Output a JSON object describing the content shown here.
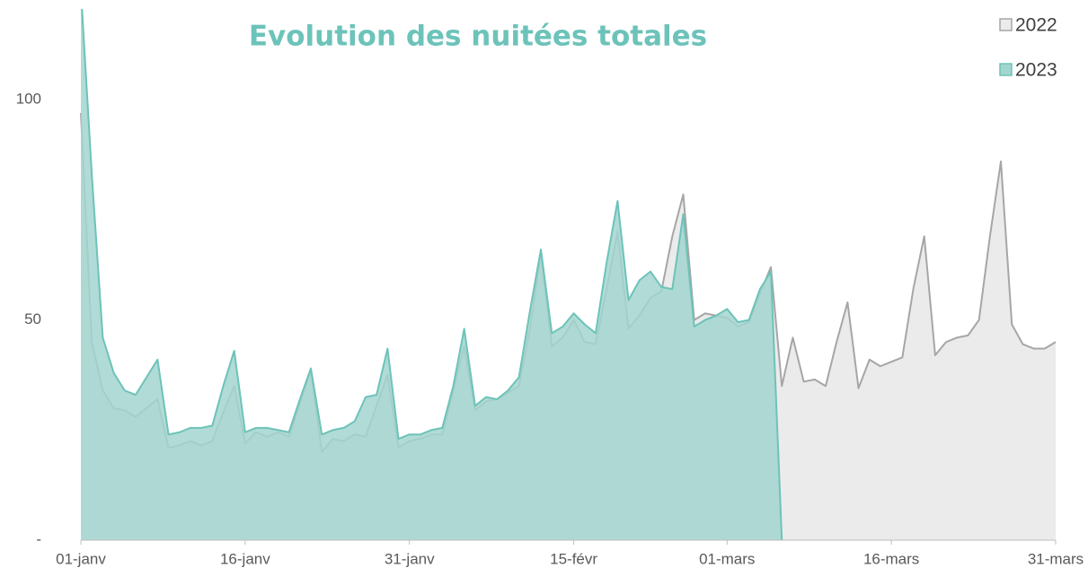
{
  "chart_data": {
    "type": "area",
    "title": "Evolution des nuitées totales",
    "title_color": "#6cc3b9",
    "categories": [
      "01-janv",
      null,
      null,
      null,
      null,
      null,
      null,
      null,
      null,
      null,
      null,
      null,
      null,
      null,
      null,
      "16-janv",
      null,
      null,
      null,
      null,
      null,
      null,
      null,
      null,
      null,
      null,
      null,
      null,
      null,
      null,
      "31-janv",
      null,
      null,
      null,
      null,
      null,
      null,
      null,
      null,
      null,
      null,
      null,
      null,
      null,
      null,
      "15-févr",
      null,
      null,
      null,
      null,
      null,
      null,
      null,
      null,
      null,
      null,
      null,
      null,
      null,
      "01-mars",
      null,
      null,
      null,
      null,
      null,
      null,
      null,
      null,
      null,
      null,
      null,
      null,
      null,
      null,
      "16-mars",
      null,
      null,
      null,
      null,
      null,
      null,
      null,
      null,
      null,
      null,
      null,
      null,
      null,
      null,
      "31-mars"
    ],
    "series": [
      {
        "name": "2022",
        "color": "#a6a6a6",
        "fill": "#ebebeb",
        "values": [
          97,
          45,
          34,
          30,
          29.5,
          28,
          30,
          32,
          21,
          21.5,
          22.5,
          21.5,
          22.5,
          29,
          35,
          22,
          24.5,
          23.5,
          24.5,
          23.5,
          31,
          38.5,
          20,
          23,
          22.5,
          24,
          23.5,
          30.5,
          37.5,
          21,
          22.5,
          23,
          24,
          24,
          34,
          44,
          29.5,
          31.5,
          32,
          33.5,
          35,
          48,
          65,
          44,
          46,
          50,
          45,
          44.5,
          57,
          70,
          48,
          51,
          55,
          56.5,
          69,
          78.5,
          50,
          51.5,
          51,
          50.5,
          48.5,
          49.5,
          56,
          62,
          35,
          46,
          36,
          36.5,
          35,
          45,
          54,
          34.5,
          41,
          39.5,
          40.5,
          41.5,
          57,
          69,
          42,
          45,
          46,
          46.5,
          50,
          69,
          86,
          49,
          44.5,
          43.5,
          43.5,
          45
        ]
      },
      {
        "name": "2023",
        "color": "#6cc3b9",
        "fill": "#a3d5cf",
        "values": [
          125,
          83,
          46,
          38,
          34,
          33,
          37,
          41,
          24,
          24.5,
          25.5,
          25.5,
          26,
          35,
          43,
          24.5,
          25.5,
          25.5,
          25,
          24.5,
          32,
          39,
          24,
          25,
          25.5,
          27,
          32.5,
          33,
          43.5,
          23,
          24,
          24,
          25,
          25.5,
          35,
          48,
          30.5,
          32.5,
          32,
          34,
          37,
          52,
          66,
          47,
          48.5,
          51.5,
          49,
          47,
          63,
          77,
          54.5,
          59,
          61,
          57.5,
          57,
          74,
          48.5,
          50,
          51,
          52.5,
          49.5,
          50,
          57,
          61,
          0,
          null,
          null,
          null,
          null,
          null,
          null,
          null,
          null,
          null,
          null,
          null,
          null,
          null,
          null,
          null,
          null,
          null,
          null,
          null,
          null,
          null,
          null,
          null,
          null,
          null
        ]
      }
    ],
    "ylim": [
      0,
      120
    ],
    "yticks": [
      {
        "value": 0,
        "label": "-"
      },
      50,
      100
    ],
    "grid": false,
    "legend": "top-right"
  }
}
